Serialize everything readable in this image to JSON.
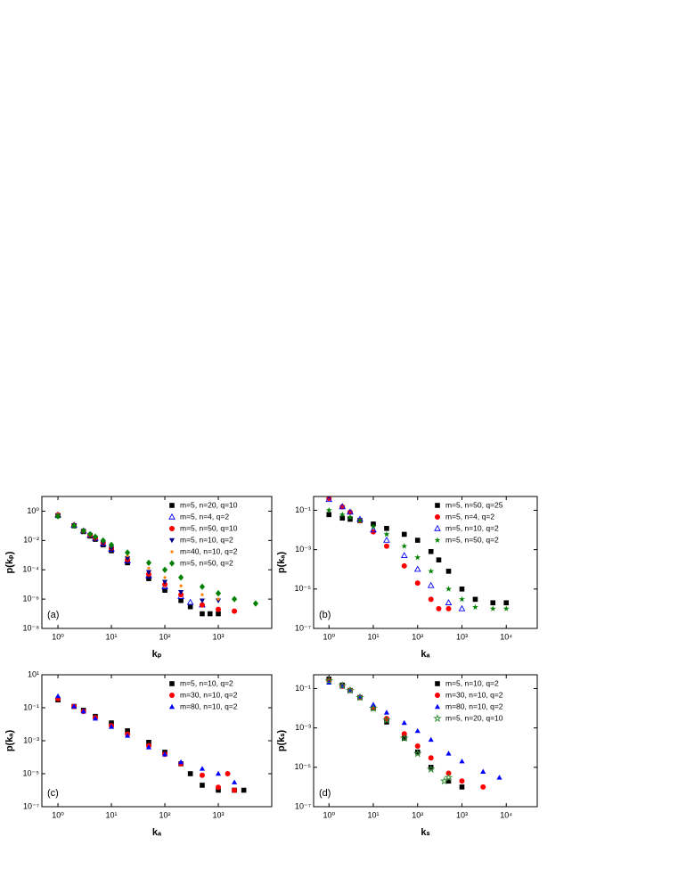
{
  "chart_data": [
    {
      "type": "scatter",
      "panel_label": "(a)",
      "x_label": "kₚ",
      "y_label": "p(kₚ)",
      "log_x": true,
      "log_y": true,
      "legend": "upper right",
      "xlim": [
        0.5,
        10000
      ],
      "xticks": [
        {
          "value": 1,
          "label": "10⁰"
        },
        {
          "value": 10,
          "label": "10¹"
        },
        {
          "value": 100,
          "label": "10²"
        },
        {
          "value": 1000,
          "label": "10³"
        }
      ],
      "ylim": [
        1e-08,
        10
      ],
      "yticks": [
        {
          "value": 1,
          "label": "10⁰"
        },
        {
          "value": 0.01,
          "label": "10⁻²"
        },
        {
          "value": 0.0001,
          "label": "10⁻⁴"
        },
        {
          "value": 1e-06,
          "label": "10⁻⁶"
        },
        {
          "value": 1e-08,
          "label": "10⁻⁸"
        }
      ],
      "series": [
        {
          "name": "m=5, n=20, q=10",
          "color": "#000000",
          "marker": "square",
          "x": [
            1,
            2,
            3,
            4,
            5,
            7,
            10,
            20,
            50,
            100,
            200,
            300,
            500,
            700,
            1000
          ],
          "values": [
            0.5,
            0.1,
            0.04,
            0.02,
            0.012,
            0.005,
            0.002,
            0.0003,
            2.5e-05,
            4e-06,
            8e-07,
            3e-07,
            1e-07,
            1e-07,
            1e-07
          ]
        },
        {
          "name": "m=5, n=4, q=2",
          "color": "#0000ff",
          "marker": "triangle-open",
          "x": [
            1,
            2,
            3,
            4,
            5,
            7,
            10,
            20,
            50,
            100,
            200,
            300,
            500
          ],
          "values": [
            0.55,
            0.11,
            0.045,
            0.023,
            0.014,
            0.006,
            0.0025,
            0.0004,
            4e-05,
            7e-06,
            1.5e-06,
            6e-07,
            4e-07
          ]
        },
        {
          "name": "m=5, n=50, q=10",
          "color": "#ff0000",
          "marker": "circle",
          "x": [
            1,
            2,
            3,
            4,
            5,
            7,
            10,
            20,
            50,
            100,
            200,
            500,
            1000,
            2000
          ],
          "values": [
            0.55,
            0.11,
            0.045,
            0.024,
            0.015,
            0.007,
            0.003,
            0.0005,
            5e-05,
            1e-05,
            2e-06,
            4e-07,
            2e-07,
            1.5e-07
          ]
        },
        {
          "name": "m=5, n=10, q=2",
          "color": "#00008b",
          "marker": "triangle-down",
          "x": [
            1,
            2,
            3,
            4,
            5,
            7,
            10,
            20,
            50,
            100,
            200,
            500,
            1000
          ],
          "values": [
            0.5,
            0.11,
            0.045,
            0.024,
            0.015,
            0.007,
            0.003,
            0.0006,
            7e-05,
            1.5e-05,
            3e-06,
            8e-07,
            8e-07
          ]
        },
        {
          "name": "m=40, n=10, q=2",
          "color": "#ff8000",
          "marker": "dot",
          "x": [
            1,
            2,
            3,
            4,
            5,
            7,
            10,
            20,
            50,
            100,
            200,
            500,
            1000,
            2000
          ],
          "values": [
            0.6,
            0.12,
            0.05,
            0.028,
            0.018,
            0.009,
            0.004,
            0.0009,
            0.00013,
            3e-05,
            8e-06,
            2e-06,
            1e-06,
            1e-06
          ]
        },
        {
          "name": "m=5, n=50, q=2",
          "color": "#008000",
          "marker": "diamond",
          "x": [
            1,
            2,
            3,
            4,
            5,
            7,
            10,
            20,
            50,
            100,
            200,
            500,
            1000,
            2000,
            5000
          ],
          "values": [
            0.45,
            0.1,
            0.045,
            0.027,
            0.018,
            0.01,
            0.005,
            0.0015,
            0.0003,
            0.0001,
            3e-05,
            7e-06,
            2.5e-06,
            1e-06,
            5e-07
          ]
        }
      ]
    },
    {
      "type": "scatter",
      "panel_label": "(b)",
      "x_label": "kₐ",
      "y_label": "p(kₐ)",
      "log_x": true,
      "log_y": true,
      "legend": "upper right",
      "xlim": [
        0.45,
        50000
      ],
      "xticks": [
        {
          "value": 1,
          "label": "10⁰"
        },
        {
          "value": 10,
          "label": "10¹"
        },
        {
          "value": 100,
          "label": "10²"
        },
        {
          "value": 1000,
          "label": "10³"
        },
        {
          "value": 10000,
          "label": "10⁴"
        }
      ],
      "ylim": [
        1e-07,
        0.5
      ],
      "yticks": [
        {
          "value": 0.1,
          "label": "10⁻¹"
        },
        {
          "value": 0.001,
          "label": "10⁻³"
        },
        {
          "value": 1e-05,
          "label": "10⁻⁵"
        },
        {
          "value": 1e-07,
          "label": "10⁻⁷"
        }
      ],
      "series": [
        {
          "name": "m=5, n=50, q=25",
          "color": "#000000",
          "marker": "square",
          "x": [
            1,
            2,
            3,
            5,
            10,
            20,
            50,
            100,
            200,
            300,
            500,
            1000,
            2000,
            5000,
            10000
          ],
          "values": [
            0.06,
            0.04,
            0.035,
            0.03,
            0.02,
            0.012,
            0.006,
            0.003,
            0.0008,
            0.0003,
            8e-05,
            1e-05,
            3e-06,
            2e-06,
            2e-06
          ]
        },
        {
          "name": "m=5, n=4, q=2",
          "color": "#ff0000",
          "marker": "circle",
          "x": [
            1,
            2,
            3,
            5,
            10,
            20,
            50,
            100,
            200,
            300,
            500
          ],
          "values": [
            0.4,
            0.15,
            0.08,
            0.03,
            0.008,
            0.0015,
            0.00015,
            2e-05,
            3e-06,
            1e-06,
            1e-06
          ]
        },
        {
          "name": "m=5, n=10, q=2",
          "color": "#0000ff",
          "marker": "triangle-open",
          "x": [
            1,
            2,
            3,
            5,
            10,
            20,
            50,
            100,
            200,
            500,
            1000
          ],
          "values": [
            0.35,
            0.15,
            0.08,
            0.035,
            0.01,
            0.003,
            0.0005,
            0.0001,
            1.5e-05,
            2e-06,
            1e-06
          ]
        },
        {
          "name": "m=5, n=50, q=2",
          "color": "#008000",
          "marker": "star",
          "x": [
            1,
            2,
            3,
            5,
            10,
            20,
            50,
            100,
            200,
            500,
            1000,
            2000,
            5000,
            10000
          ],
          "values": [
            0.1,
            0.06,
            0.045,
            0.03,
            0.015,
            0.006,
            0.0015,
            0.0004,
            8e-05,
            1e-05,
            3e-06,
            1.2e-06,
            1e-06,
            1e-06
          ]
        }
      ]
    },
    {
      "type": "scatter",
      "panel_label": "(c)",
      "x_label": "kₐ",
      "y_label": "p(kₐ)",
      "log_x": true,
      "log_y": true,
      "legend": "upper right",
      "xlim": [
        0.5,
        10000
      ],
      "xticks": [
        {
          "value": 1,
          "label": "10⁰"
        },
        {
          "value": 10,
          "label": "10¹"
        },
        {
          "value": 100,
          "label": "10²"
        },
        {
          "value": 1000,
          "label": "10³"
        }
      ],
      "ylim": [
        1e-07,
        10
      ],
      "yticks": [
        {
          "value": 10,
          "label": "10¹"
        },
        {
          "value": 0.1,
          "label": "10⁻¹"
        },
        {
          "value": 0.001,
          "label": "10⁻³"
        },
        {
          "value": 1e-05,
          "label": "10⁻⁵"
        },
        {
          "value": 1e-07,
          "label": "10⁻⁷"
        }
      ],
      "series": [
        {
          "name": "m=5, n=10, q=2",
          "color": "#000000",
          "marker": "square",
          "x": [
            1,
            2,
            3,
            5,
            10,
            20,
            50,
            100,
            200,
            300,
            500,
            1000,
            2000,
            3000
          ],
          "values": [
            0.3,
            0.12,
            0.07,
            0.03,
            0.012,
            0.004,
            0.0008,
            0.0002,
            4e-05,
            1e-05,
            2e-06,
            1e-06,
            1e-06,
            1e-06
          ]
        },
        {
          "name": "m=30, n=10, q=2",
          "color": "#ff0000",
          "marker": "circle",
          "x": [
            1,
            2,
            3,
            5,
            10,
            20,
            50,
            100,
            200,
            500,
            1000,
            1500,
            2000
          ],
          "values": [
            0.35,
            0.12,
            0.06,
            0.025,
            0.008,
            0.0025,
            0.0005,
            0.00015,
            4e-05,
            8e-06,
            1.5e-06,
            1e-05,
            1e-06
          ]
        },
        {
          "name": "m=80, n=10, q=2",
          "color": "#0000ff",
          "marker": "triangle",
          "x": [
            1,
            2,
            3,
            5,
            10,
            20,
            50,
            100,
            200,
            500,
            1000,
            2000
          ],
          "values": [
            0.5,
            0.12,
            0.06,
            0.022,
            0.007,
            0.002,
            0.0004,
            0.00015,
            5e-05,
            2e-05,
            1e-05,
            3e-06
          ]
        }
      ]
    },
    {
      "type": "scatter",
      "panel_label": "(d)",
      "x_label": "kₛ",
      "y_label": "p(kₛ)",
      "log_x": true,
      "log_y": true,
      "legend": "upper right",
      "xlim": [
        0.45,
        50000
      ],
      "xticks": [
        {
          "value": 1,
          "label": "10⁰"
        },
        {
          "value": 10,
          "label": "10¹"
        },
        {
          "value": 100,
          "label": "10²"
        },
        {
          "value": 1000,
          "label": "10³"
        },
        {
          "value": 10000,
          "label": "10⁴"
        }
      ],
      "ylim": [
        1e-07,
        0.5
      ],
      "yticks": [
        {
          "value": 0.1,
          "label": "10⁻¹"
        },
        {
          "value": 0.001,
          "label": "10⁻³"
        },
        {
          "value": 1e-05,
          "label": "10⁻⁵"
        },
        {
          "value": 1e-07,
          "label": "10⁻⁷"
        }
      ],
      "series": [
        {
          "name": "m=5, n=10, q=2",
          "color": "#000000",
          "marker": "square",
          "x": [
            1,
            2,
            3,
            5,
            10,
            20,
            50,
            100,
            200,
            500,
            1000
          ],
          "values": [
            0.3,
            0.15,
            0.08,
            0.035,
            0.01,
            0.002,
            0.0003,
            6e-05,
            1e-05,
            2e-06,
            1e-06
          ]
        },
        {
          "name": "m=30, n=10, q=2",
          "color": "#ff0000",
          "marker": "circle",
          "x": [
            1,
            2,
            3,
            5,
            10,
            20,
            50,
            100,
            200,
            500,
            1000,
            3000
          ],
          "values": [
            0.25,
            0.13,
            0.08,
            0.035,
            0.011,
            0.003,
            0.0005,
            0.00012,
            3e-05,
            5e-06,
            2e-06,
            1e-06
          ]
        },
        {
          "name": "m=80, n=10, q=2",
          "color": "#0000ff",
          "marker": "triangle",
          "x": [
            1,
            2,
            3,
            5,
            10,
            20,
            50,
            100,
            200,
            500,
            1000,
            3000,
            7000
          ],
          "values": [
            0.2,
            0.13,
            0.08,
            0.04,
            0.015,
            0.006,
            0.0018,
            0.0007,
            0.00025,
            5e-05,
            2e-05,
            6e-06,
            3e-06
          ]
        },
        {
          "name": "m=5, n=20, q=10",
          "color": "#2e8b2e",
          "marker": "star-open",
          "x": [
            1,
            2,
            3,
            5,
            10,
            20,
            50,
            100,
            200,
            400,
            500
          ],
          "values": [
            0.25,
            0.14,
            0.08,
            0.035,
            0.01,
            0.0025,
            0.0003,
            5e-05,
            8e-06,
            2e-06,
            3e-06
          ]
        }
      ]
    }
  ]
}
